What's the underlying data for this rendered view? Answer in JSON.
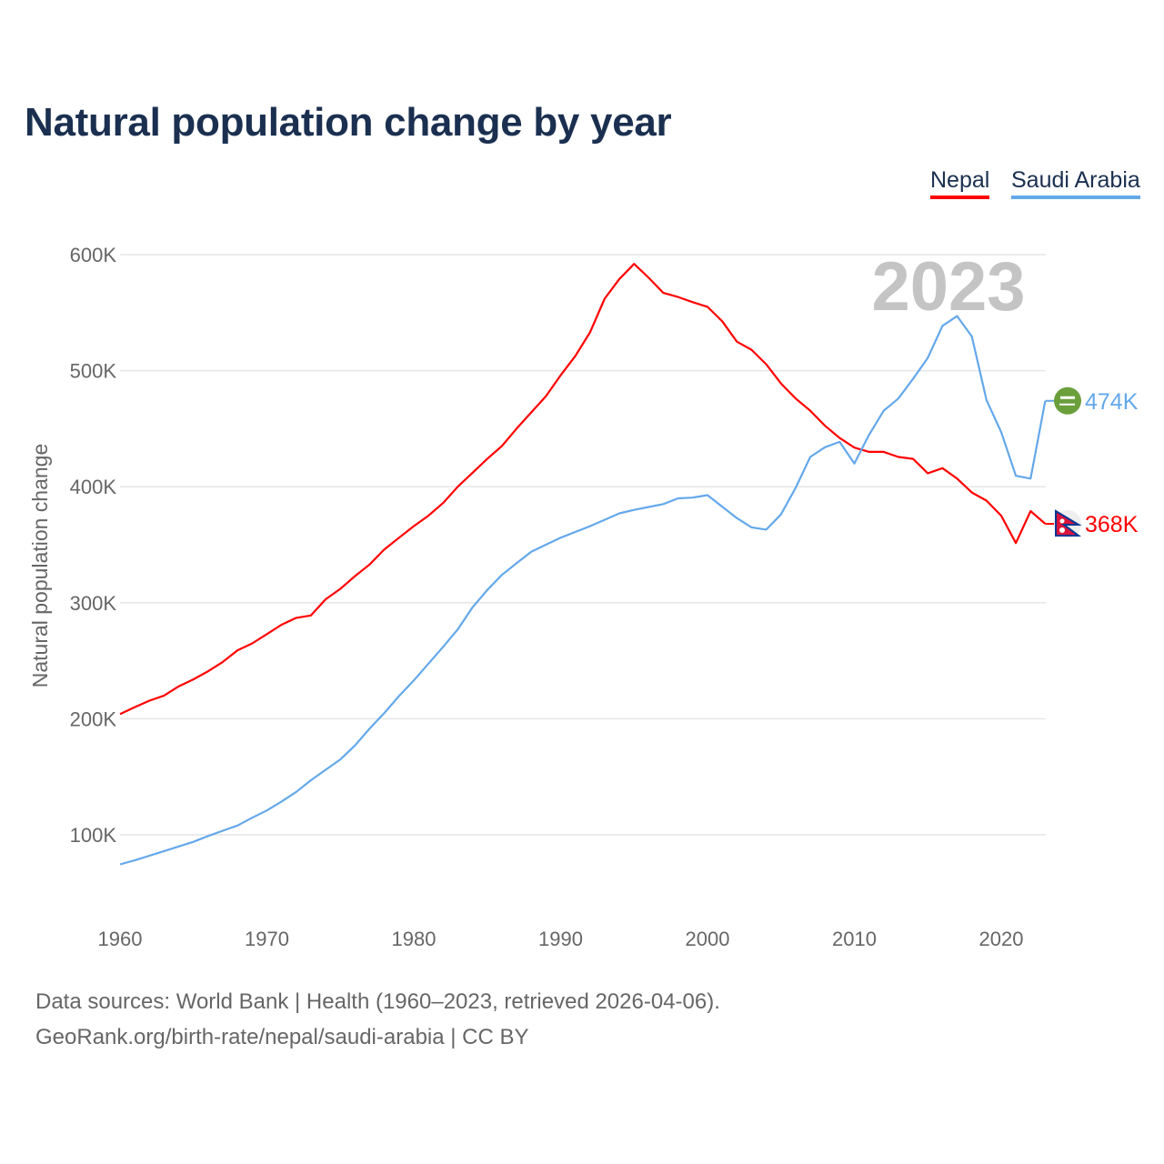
{
  "chart_data": {
    "type": "line",
    "title": "Natural population change by year",
    "xlabel": "",
    "ylabel": "Natural population change",
    "xlim": [
      1960,
      2023
    ],
    "ylim": [
      40,
      650
    ],
    "yticks": [
      100,
      200,
      300,
      400,
      500,
      600
    ],
    "ytick_labels": [
      "100K",
      "200K",
      "300K",
      "400K",
      "500K",
      "600K"
    ],
    "xticks": [
      1960,
      1970,
      1980,
      1990,
      2000,
      2010,
      2020
    ],
    "xtick_labels": [
      "1960",
      "1970",
      "1980",
      "1990",
      "2000",
      "2010",
      "2020"
    ],
    "grid": "horizontal",
    "legend_position": "top-right",
    "year_label": "2023",
    "x_start": 1960,
    "unit": "thousands",
    "series": [
      {
        "name": "Nepal",
        "color": "#ff0000",
        "end_label": "368K",
        "flag_icon": "nepal-flag-icon",
        "values": [
          204,
          210,
          215.6,
          220,
          228,
          234,
          241,
          249,
          259,
          265,
          273,
          281,
          287,
          289,
          303,
          312,
          323,
          333,
          346,
          356,
          366,
          375,
          386,
          400,
          412,
          424,
          435,
          450,
          464,
          478,
          496,
          512.5,
          533,
          562,
          579,
          592,
          580,
          567,
          563.5,
          559,
          555,
          542.6,
          525,
          518,
          505.5,
          489,
          476,
          465.5,
          452.5,
          442,
          433.7,
          430,
          430,
          425.6,
          424,
          411.5,
          416,
          407,
          395,
          388,
          375,
          351.4,
          379,
          368
        ]
      },
      {
        "name": "Saudi Arabia",
        "color": "#64a8ea",
        "end_label": "474K",
        "flag_icon": "saudi-arabia-flag-icon",
        "values": [
          74.5,
          78,
          82,
          86,
          90,
          94,
          99,
          103.5,
          108,
          114.7,
          121,
          128.7,
          137,
          147,
          156,
          165,
          177,
          191.6,
          205,
          219.6,
          233,
          247.5,
          262,
          277,
          296,
          311,
          324,
          334,
          344,
          350,
          356,
          361,
          366,
          371.5,
          377,
          380,
          382.5,
          385,
          390,
          390.6,
          392.7,
          382.8,
          373,
          365,
          363,
          376,
          399,
          425.6,
          434,
          438.6,
          420,
          444.6,
          465.5,
          476,
          493,
          511,
          538.6,
          547,
          529.5,
          474.7,
          447,
          409.4,
          407,
          474
        ]
      }
    ]
  },
  "footer": {
    "line1": "Data sources: World Bank | Health (1960–2023, retrieved 2026-04-06).",
    "line2": "GeoRank.org/birth-rate/nepal/saudi-arabia | CC BY"
  }
}
